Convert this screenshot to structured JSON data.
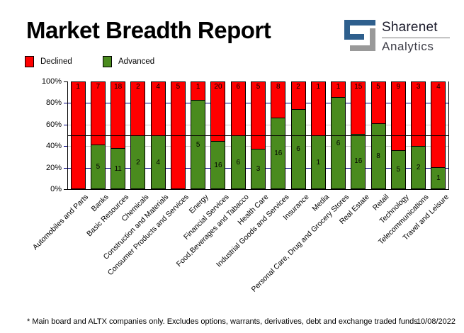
{
  "header": {
    "title": "Market Breadth Report",
    "brand_name": "Sharenet",
    "brand_sub": "Analytics",
    "brand_blue": "#2e5f8d",
    "brand_gray": "#999999"
  },
  "legend": {
    "declined": {
      "label": "Declined",
      "color": "#ff0000"
    },
    "advanced": {
      "label": "Advanced",
      "color": "#4a8b1e"
    }
  },
  "chart_data": {
    "type": "bar",
    "stacked": true,
    "percent_stacked": true,
    "categories": [
      "Automobiles and Parts",
      "Banks",
      "Basic Resources",
      "Chemicals",
      "Construction and Materials",
      "Consumer Products and Services",
      "Energy",
      "Financial Services",
      "Food,Beverages and Tabacco",
      "Health Care",
      "Industrial Goods and Services",
      "Insurance",
      "Media",
      "Personal Care, Drug and Grocery Stores",
      "Real Estate",
      "Retail",
      "Technology",
      "Telecommunications",
      "Travel and Leisure"
    ],
    "series": [
      {
        "name": "Declined",
        "color": "#ff0000",
        "values": [
          1,
          7,
          18,
          2,
          4,
          5,
          1,
          20,
          6,
          5,
          8,
          2,
          1,
          1,
          15,
          5,
          9,
          3,
          4
        ]
      },
      {
        "name": "Advanced",
        "color": "#4a8b1e",
        "values": [
          0,
          5,
          11,
          2,
          4,
          0,
          5,
          16,
          6,
          3,
          16,
          6,
          1,
          6,
          16,
          8,
          5,
          2,
          1
        ]
      }
    ],
    "ylim": [
      0,
      100
    ],
    "y_ticks": [
      "0%",
      "20%",
      "40%",
      "60%",
      "80%",
      "100%"
    ],
    "gridlines": [
      {
        "pct": 20,
        "color": "#000080"
      },
      {
        "pct": 40,
        "color": "#c6c6c6"
      },
      {
        "pct": 60,
        "color": "#c6c6c6"
      },
      {
        "pct": 80,
        "color": "#000080"
      }
    ],
    "midline": {
      "pct": 50,
      "color": "#000000"
    },
    "legend_position": "top-left",
    "grid": true
  },
  "footer": {
    "note": "* Main board and ALTX companies only. Excludes options, warrants, derivatives, debt and exchange traded funds",
    "date": "10/08/2022"
  }
}
